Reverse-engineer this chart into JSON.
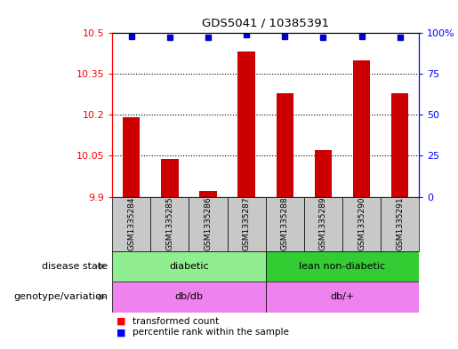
{
  "title": "GDS5041 / 10385391",
  "samples": [
    "GSM1335284",
    "GSM1335285",
    "GSM1335286",
    "GSM1335287",
    "GSM1335288",
    "GSM1335289",
    "GSM1335290",
    "GSM1335291"
  ],
  "red_values": [
    10.19,
    10.04,
    9.92,
    10.43,
    10.28,
    10.07,
    10.4,
    10.28
  ],
  "blue_values": [
    98,
    97,
    97,
    99,
    98,
    97,
    98,
    97
  ],
  "y_min": 9.9,
  "y_max": 10.5,
  "y_ticks_left": [
    9.9,
    10.05,
    10.2,
    10.35,
    10.5
  ],
  "y_ticks_right": [
    0,
    25,
    50,
    75,
    100
  ],
  "y_ticks_right_labels": [
    "0",
    "25",
    "50",
    "75",
    "100%"
  ],
  "grid_lines": [
    10.05,
    10.2,
    10.35
  ],
  "disease_state_groups": [
    {
      "label": "diabetic",
      "start": 0,
      "end": 4,
      "color": "#90EE90"
    },
    {
      "label": "lean non-diabetic",
      "start": 4,
      "end": 8,
      "color": "#33CC33"
    }
  ],
  "genotype_groups": [
    {
      "label": "db/db",
      "start": 0,
      "end": 4,
      "color": "#EE82EE"
    },
    {
      "label": "db/+",
      "start": 4,
      "end": 8,
      "color": "#EE82EE"
    }
  ],
  "bar_color": "#CC0000",
  "dot_color": "#0000CC",
  "label_disease_state": "disease state",
  "label_genotype": "genotype/variation",
  "legend_red": "transformed count",
  "legend_blue": "percentile rank within the sample",
  "sample_box_color": "#C8C8C8",
  "axis_bg_color": "#FFFFFF"
}
